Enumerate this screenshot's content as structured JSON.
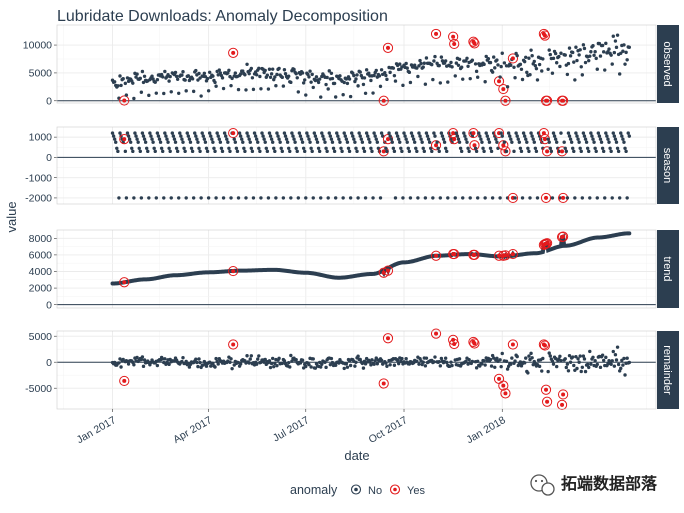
{
  "chart_data": {
    "type": "scatter",
    "title": "Lubridate Downloads: Anomaly Decomposition",
    "xlabel": "date",
    "ylabel": "value",
    "x_range": [
      "2016-11-10",
      "2018-05-25"
    ],
    "x_ticks": [
      {
        "date": "2017-01-01",
        "label": "Jan 2017"
      },
      {
        "date": "2017-04-01",
        "label": "Apr 2017"
      },
      {
        "date": "2017-07-01",
        "label": "Jul 2017"
      },
      {
        "date": "2017-10-01",
        "label": "Oct 2017"
      },
      {
        "date": "2018-01-01",
        "label": "Jan 2018"
      }
    ],
    "date_start": "2017-01-01",
    "date_end": "2018-04-30",
    "panels": [
      {
        "name": "observed",
        "ylim": [
          -400,
          13600
        ],
        "yticks": [
          0,
          5000,
          10000
        ],
        "yticklabels": [
          "0",
          "5000",
          "10000"
        ]
      },
      {
        "name": "season",
        "ylim": [
          -2300,
          1500
        ],
        "yticks": [
          -2000,
          -1000,
          0,
          1000
        ],
        "yticklabels": [
          "-2000",
          "-1000",
          "0",
          "1000"
        ]
      },
      {
        "name": "trend",
        "ylim": [
          -400,
          9000
        ],
        "yticks": [
          0,
          2000,
          4000,
          6000,
          8000
        ],
        "yticklabels": [
          "0",
          "2000",
          "4000",
          "6000",
          "8000"
        ]
      },
      {
        "name": "remainder",
        "ylim": [
          -9000,
          6000
        ],
        "yticks": [
          -5000,
          0,
          5000
        ],
        "yticklabels": [
          "-5000",
          "0",
          "5000"
        ]
      }
    ],
    "trend_knots": [
      {
        "date": "2017-01-01",
        "value": 2550
      },
      {
        "date": "2017-02-01",
        "value": 3050
      },
      {
        "date": "2017-03-01",
        "value": 3550
      },
      {
        "date": "2017-04-01",
        "value": 3900
      },
      {
        "date": "2017-05-01",
        "value": 4100
      },
      {
        "date": "2017-06-01",
        "value": 4200
      },
      {
        "date": "2017-07-01",
        "value": 3850
      },
      {
        "date": "2017-08-01",
        "value": 3250
      },
      {
        "date": "2017-09-01",
        "value": 3700
      },
      {
        "date": "2017-10-01",
        "value": 5100
      },
      {
        "date": "2017-11-01",
        "value": 5900
      },
      {
        "date": "2017-12-01",
        "value": 6100
      },
      {
        "date": "2018-01-01",
        "value": 5800
      },
      {
        "date": "2018-02-01",
        "value": 6200
      },
      {
        "date": "2018-03-01",
        "value": 7100
      },
      {
        "date": "2018-04-01",
        "value": 8100
      },
      {
        "date": "2018-04-30",
        "value": 8600
      }
    ],
    "season_weekly": [
      1200,
      1050,
      900,
      750,
      450,
      300,
      -2000
    ],
    "anomalies": [
      {
        "date": "2017-01-12",
        "observed": 50,
        "season": 900,
        "trend": 2700,
        "remainder": -3600
      },
      {
        "date": "2017-04-24",
        "observed": 8600,
        "season": 1200,
        "trend": 4050,
        "remainder": 3400
      },
      {
        "date": "2017-09-12",
        "observed": 0,
        "season": 300,
        "trend": 3850,
        "remainder": -4100
      },
      {
        "date": "2017-09-16",
        "observed": 9500,
        "season": 900,
        "trend": 4100,
        "remainder": 4600
      },
      {
        "date": "2017-10-31",
        "observed": 12000,
        "season": 600,
        "trend": 5900,
        "remainder": 5500
      },
      {
        "date": "2017-11-16",
        "observed": 11500,
        "season": 1200,
        "trend": 6100,
        "remainder": 4300
      },
      {
        "date": "2017-11-17",
        "observed": 10200,
        "season": 900,
        "trend": 6100,
        "remainder": 3500
      },
      {
        "date": "2017-12-05",
        "observed": 10600,
        "season": 1200,
        "trend": 6000,
        "remainder": 3900
      },
      {
        "date": "2017-12-06",
        "observed": 10300,
        "season": 600,
        "trend": 6000,
        "remainder": 3600
      },
      {
        "date": "2017-12-29",
        "observed": 3500,
        "season": 1200,
        "trend": 5900,
        "remainder": -3200
      },
      {
        "date": "2018-01-02",
        "observed": 2100,
        "season": 600,
        "trend": 5900,
        "remainder": -4500
      },
      {
        "date": "2018-01-04",
        "observed": 0,
        "season": 300,
        "trend": 5950,
        "remainder": -6000
      },
      {
        "date": "2018-01-11",
        "observed": 7600,
        "season": -2000,
        "trend": 6100,
        "remainder": 3400
      },
      {
        "date": "2018-02-09",
        "observed": 12000,
        "season": 1200,
        "trend": 7200,
        "remainder": 3400
      },
      {
        "date": "2018-02-10",
        "observed": 11700,
        "season": 900,
        "trend": 7300,
        "remainder": 3200
      },
      {
        "date": "2018-02-11",
        "observed": 0,
        "season": -2000,
        "trend": 7350,
        "remainder": -5300
      },
      {
        "date": "2018-02-12",
        "observed": 0,
        "season": 300,
        "trend": 7400,
        "remainder": -7600
      },
      {
        "date": "2018-02-26",
        "observed": 0,
        "season": 300,
        "trend": 8150,
        "remainder": -8200
      },
      {
        "date": "2018-02-27",
        "observed": 0,
        "season": -2000,
        "trend": 8200,
        "remainder": -6200
      }
    ],
    "legend": {
      "title": "anomaly",
      "entries": [
        {
          "label": "No",
          "color": "#2c3e50"
        },
        {
          "label": "Yes",
          "color": "#e31a1c"
        }
      ],
      "position": "bottom-center"
    },
    "colors": {
      "point": "#2c3e50",
      "anomaly": "#e31a1c",
      "strip": "#2c3e50",
      "grid": "#ebebeb",
      "panel_border": "#2c3e50"
    }
  },
  "watermark": {
    "text": "拓端数据部落",
    "icon": "wechat-icon"
  }
}
